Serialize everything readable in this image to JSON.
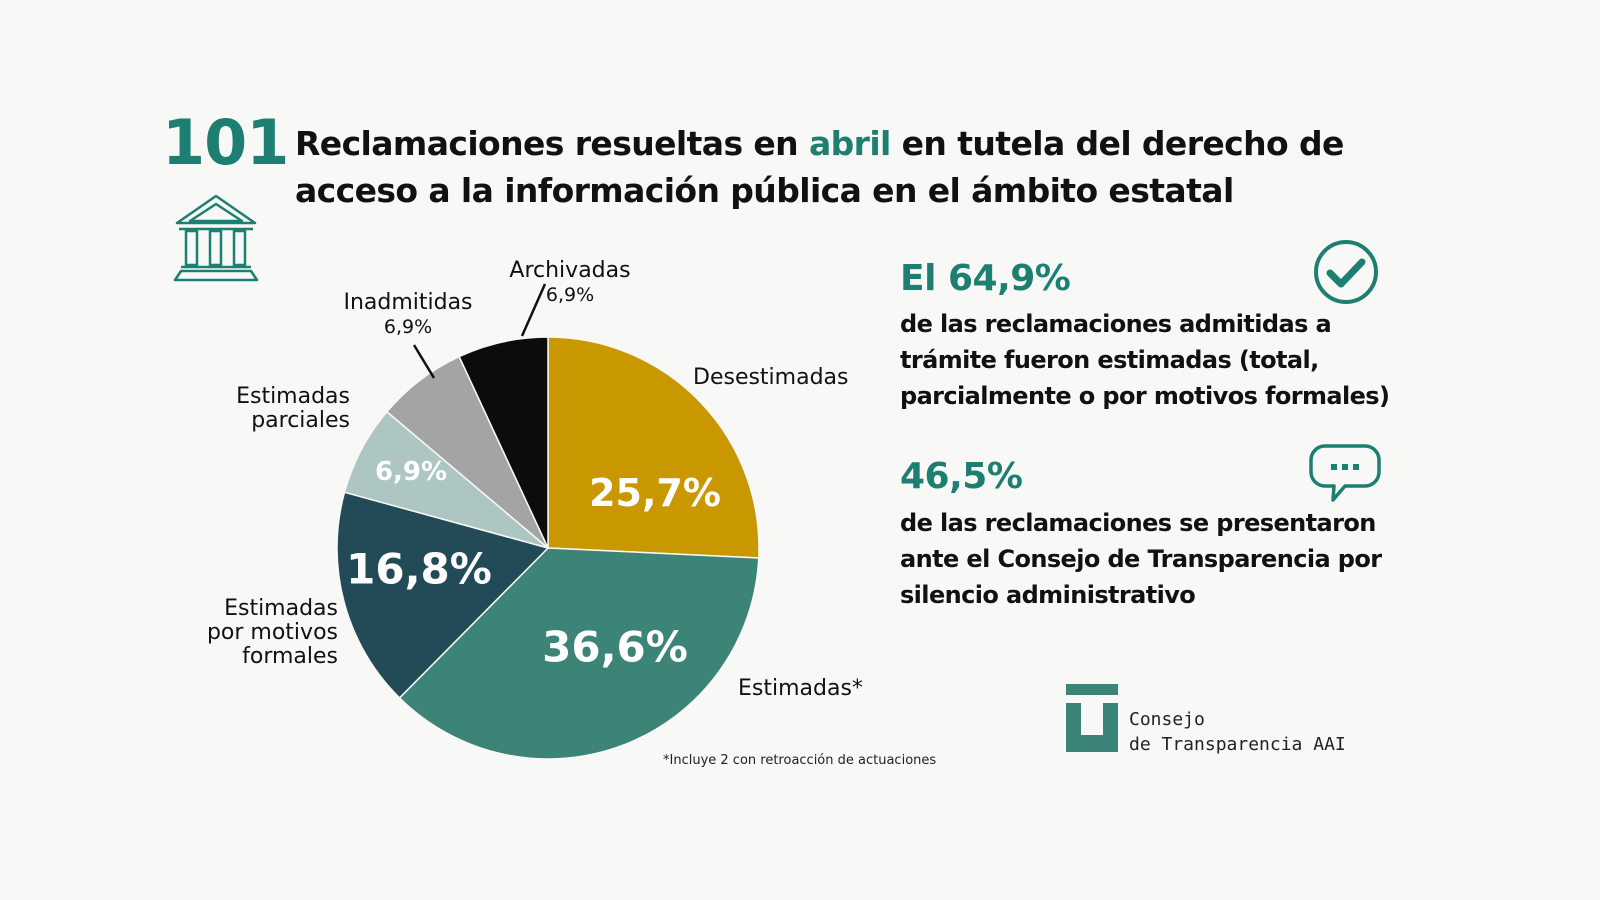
{
  "header": {
    "count": "101",
    "title_pre": "Reclamaciones resueltas en ",
    "title_accent": "abril",
    "title_post": " en tutela del derecho de acceso a la información pública en el ámbito estatal"
  },
  "chart_data": {
    "type": "pie",
    "start_angle_deg": 0,
    "direction": "clockwise",
    "slices": [
      {
        "label": "Desestimadas",
        "value": 25.7,
        "display": "25,7%",
        "color": "#c99700"
      },
      {
        "label": "Estimadas*",
        "value": 36.6,
        "display": "36,6%",
        "color": "#3c8378"
      },
      {
        "label": "Estimadas por motivos formales",
        "value": 16.8,
        "display": "16,8%",
        "color": "#234b57"
      },
      {
        "label": "Estimadas parciales",
        "value": 6.9,
        "display": "6,9%",
        "color": "#adc6c2"
      },
      {
        "label": "Inadmitidas",
        "value": 6.9,
        "display": "6,9%",
        "color": "#a4a4a4"
      },
      {
        "label": "Archivadas",
        "value": 6.9,
        "display": "6,9%",
        "color": "#0c0c0c"
      }
    ],
    "footnote": "*Incluye 2 con retroacción de actuaciones"
  },
  "labels": {
    "archivadas": "Archivadas",
    "inadmitidas": "Inadmitidas",
    "estimadas_parciales_1": "Estimadas",
    "estimadas_parciales_2": "parciales",
    "formales_1": "Estimadas",
    "formales_2": "por motivos",
    "formales_3": "formales",
    "desestimadas": "Desestimadas",
    "estimadas": "Estimadas*"
  },
  "stats": [
    {
      "value": "El 64,9%",
      "text": "de las reclamaciones admitidas a trámite fueron estimadas (total, parcialmente o por motivos formales)",
      "icon": "check-circle-icon"
    },
    {
      "value": "46,5%",
      "text": "de las reclamaciones se presentaron ante el Consejo de Transparencia por silencio administrativo",
      "icon": "chat-bubble-icon"
    }
  ],
  "logo": {
    "line1": "Consejo",
    "line2": "de Transparencia AAI"
  },
  "colors": {
    "accent": "#1c7f72"
  }
}
